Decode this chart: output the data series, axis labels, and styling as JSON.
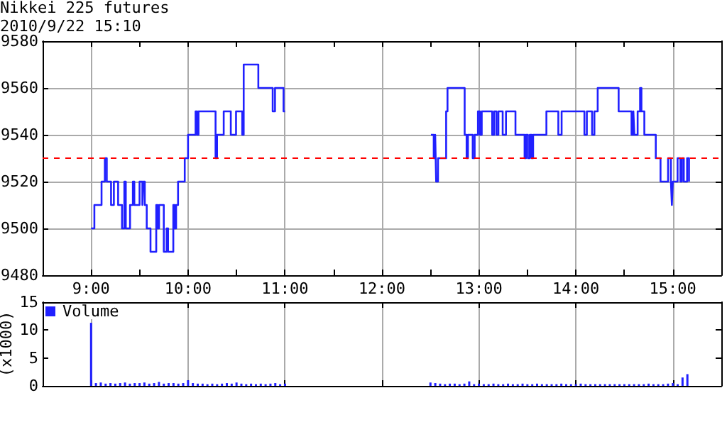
{
  "chart_data": [
    {
      "type": "step",
      "title": "Nikkei 225 futures",
      "subtitle": "2010/9/22 15:10",
      "x": [
        9.0,
        9.034,
        9.108,
        9.142,
        9.162,
        9.206,
        9.235,
        9.279,
        9.319,
        9.343,
        9.358,
        9.402,
        9.431,
        9.446,
        9.5,
        9.529,
        9.539,
        9.554,
        9.574,
        9.613,
        9.672,
        9.686,
        9.701,
        9.75,
        9.779,
        9.794,
        9.848,
        9.863,
        9.877,
        9.897,
        9.966,
        10.0,
        10.078,
        10.093,
        10.108,
        10.284,
        10.299,
        10.368,
        10.441,
        10.495,
        10.559,
        10.574,
        10.725,
        10.873,
        10.897,
        10.985,
        11.0,
        12.505,
        12.534,
        12.549,
        12.559,
        12.578,
        12.662,
        12.676,
        12.853,
        12.873,
        12.887,
        12.936,
        12.956,
        12.99,
        13.01,
        13.029,
        13.137,
        13.157,
        13.181,
        13.201,
        13.245,
        13.279,
        13.377,
        13.471,
        13.485,
        13.505,
        13.525,
        13.544,
        13.559,
        13.696,
        13.819,
        13.853,
        14.088,
        14.113,
        14.167,
        14.191,
        14.225,
        14.441,
        14.574,
        14.593,
        14.603,
        14.637,
        14.662,
        14.676,
        14.706,
        14.824,
        14.873,
        14.951,
        14.98,
        14.99,
        15.0,
        15.049,
        15.078,
        15.093,
        15.113,
        15.147,
        15.167,
        15.176
      ],
      "values": [
        9500,
        9510,
        9520,
        9530,
        9520,
        9510,
        9520,
        9510,
        9500,
        9520,
        9500,
        9510,
        9520,
        9510,
        9520,
        9510,
        9520,
        9510,
        9500,
        9490,
        9510,
        9500,
        9510,
        9490,
        9500,
        9490,
        9510,
        9500,
        9510,
        9520,
        9530,
        9540,
        9550,
        9540,
        9550,
        9530,
        9540,
        9550,
        9540,
        9550,
        9540,
        9570,
        9560,
        9550,
        9560,
        9550,
        null,
        9540,
        9530,
        9540,
        9520,
        9530,
        9550,
        9560,
        9540,
        9530,
        9540,
        9530,
        9540,
        9550,
        9540,
        9550,
        9540,
        9550,
        9540,
        9550,
        9540,
        9550,
        9540,
        9530,
        9540,
        9530,
        9540,
        9530,
        9540,
        9550,
        9540,
        9550,
        9540,
        9550,
        9540,
        9550,
        9560,
        9550,
        9540,
        9550,
        9540,
        9550,
        9560,
        9550,
        9540,
        9530,
        9520,
        9530,
        9520,
        9510,
        9520,
        9530,
        9520,
        9530,
        9520,
        9530,
        9520,
        9520
      ],
      "color": "#2020ff",
      "xlim": [
        8.5,
        15.5
      ],
      "xticks": [
        {
          "value": 9,
          "label": "9:00"
        },
        {
          "value": 9.5,
          "label": null
        },
        {
          "value": 10,
          "label": "10:00"
        },
        {
          "value": 10.5,
          "label": null
        },
        {
          "value": 11,
          "label": "11:00"
        },
        {
          "value": 11.5,
          "label": null
        },
        {
          "value": 12,
          "label": "12:00"
        },
        {
          "value": 12.5,
          "label": null
        },
        {
          "value": 13,
          "label": "13:00"
        },
        {
          "value": 13.5,
          "label": null
        },
        {
          "value": 14,
          "label": "14:00"
        },
        {
          "value": 14.5,
          "label": null
        },
        {
          "value": 15,
          "label": "15:00"
        }
      ],
      "ylim": [
        9480,
        9580
      ],
      "yticks": [
        9480,
        9500,
        9520,
        9540,
        9560,
        9580
      ],
      "grid": true,
      "ref_lines": [
        {
          "axis": "y",
          "value": 9530,
          "color": "#ff0000",
          "line_style": "dashed"
        }
      ]
    },
    {
      "type": "bar",
      "ylabel": "(x1000)",
      "legend": "top left",
      "tick_labels": "y",
      "grid": "x",
      "xlim": [
        8.5,
        15.5
      ],
      "xticks": [
        {
          "value": 9,
          "label": null
        },
        {
          "value": 10,
          "label": null
        },
        {
          "value": 11,
          "label": null
        },
        {
          "value": 12,
          "label": null
        },
        {
          "value": 13,
          "label": null
        },
        {
          "value": 14,
          "label": null
        },
        {
          "value": 15,
          "label": null
        }
      ],
      "ylim": [
        0,
        15
      ],
      "yticks": [
        0,
        5,
        10,
        15
      ],
      "x": [
        9.0,
        9.05,
        9.1,
        9.15,
        9.2,
        9.25,
        9.3,
        9.35,
        9.4,
        9.45,
        9.5,
        9.55,
        9.6,
        9.65,
        9.7,
        9.75,
        9.8,
        9.85,
        9.9,
        9.95,
        10.0,
        10.05,
        10.1,
        10.15,
        10.2,
        10.25,
        10.3,
        10.35,
        10.4,
        10.45,
        10.5,
        10.55,
        10.6,
        10.65,
        10.7,
        10.75,
        10.8,
        10.85,
        10.9,
        10.95,
        11.0,
        12.5,
        12.55,
        12.6,
        12.65,
        12.7,
        12.75,
        12.8,
        12.85,
        12.9,
        12.95,
        13.0,
        13.05,
        13.1,
        13.15,
        13.2,
        13.25,
        13.3,
        13.35,
        13.4,
        13.45,
        13.5,
        13.55,
        13.6,
        13.65,
        13.7,
        13.75,
        13.8,
        13.85,
        13.9,
        13.95,
        14.0,
        14.05,
        14.1,
        14.15,
        14.2,
        14.25,
        14.3,
        14.35,
        14.4,
        14.45,
        14.5,
        14.55,
        14.6,
        14.65,
        14.7,
        14.75,
        14.8,
        14.85,
        14.9,
        14.95,
        15.0,
        15.05,
        15.1,
        15.15
      ],
      "series": [
        {
          "name": "Volume",
          "color": "#2020ff",
          "values": [
            11.3,
            0.5,
            0.6,
            0.4,
            0.5,
            0.4,
            0.5,
            0.6,
            0.4,
            0.5,
            0.5,
            0.6,
            0.4,
            0.5,
            0.7,
            0.4,
            0.5,
            0.5,
            0.4,
            0.5,
            1.0,
            0.5,
            0.4,
            0.4,
            0.3,
            0.4,
            0.3,
            0.4,
            0.5,
            0.4,
            0.6,
            0.4,
            0.3,
            0.4,
            0.3,
            0.4,
            0.3,
            0.4,
            0.5,
            0.3,
            0.4,
            0.6,
            0.5,
            0.4,
            0.3,
            0.4,
            0.4,
            0.3,
            0.4,
            0.8,
            0.3,
            0.4,
            0.3,
            0.3,
            0.4,
            0.3,
            0.3,
            0.4,
            0.3,
            0.3,
            0.4,
            0.3,
            0.3,
            0.4,
            0.3,
            0.3,
            0.3,
            0.3,
            0.4,
            0.3,
            0.3,
            0.3,
            0.4,
            0.3,
            0.3,
            0.3,
            0.3,
            0.3,
            0.3,
            0.3,
            0.3,
            0.3,
            0.3,
            0.3,
            0.3,
            0.3,
            0.4,
            0.3,
            0.3,
            0.3,
            0.4,
            0.5,
            0.3,
            1.5,
            2.1
          ]
        }
      ]
    }
  ]
}
